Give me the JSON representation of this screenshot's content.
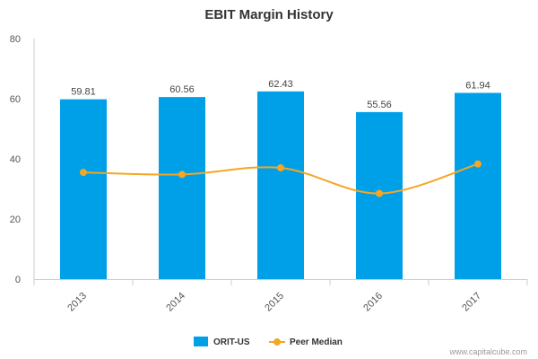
{
  "chart_data": {
    "type": "bar",
    "title": "EBIT Margin History",
    "categories": [
      "2013",
      "2014",
      "2015",
      "2016",
      "2017"
    ],
    "series": [
      {
        "name": "ORIT-US",
        "type": "bar",
        "values": [
          59.81,
          60.56,
          62.43,
          55.56,
          61.94
        ],
        "color": "#00a0e8",
        "data_labels": [
          "59.81",
          "60.56",
          "62.43",
          "55.56",
          "61.94"
        ]
      },
      {
        "name": "Peer Median",
        "type": "line",
        "smooth": true,
        "values": [
          35.5,
          34.8,
          37.0,
          28.5,
          38.3
        ],
        "color": "#f5a623"
      }
    ],
    "yticks": [
      "0",
      "20",
      "40",
      "60",
      "80"
    ],
    "ylim": [
      0,
      80
    ],
    "grid": false,
    "legend_position": "bottom-center"
  },
  "credit": "www.capitalcube.com"
}
